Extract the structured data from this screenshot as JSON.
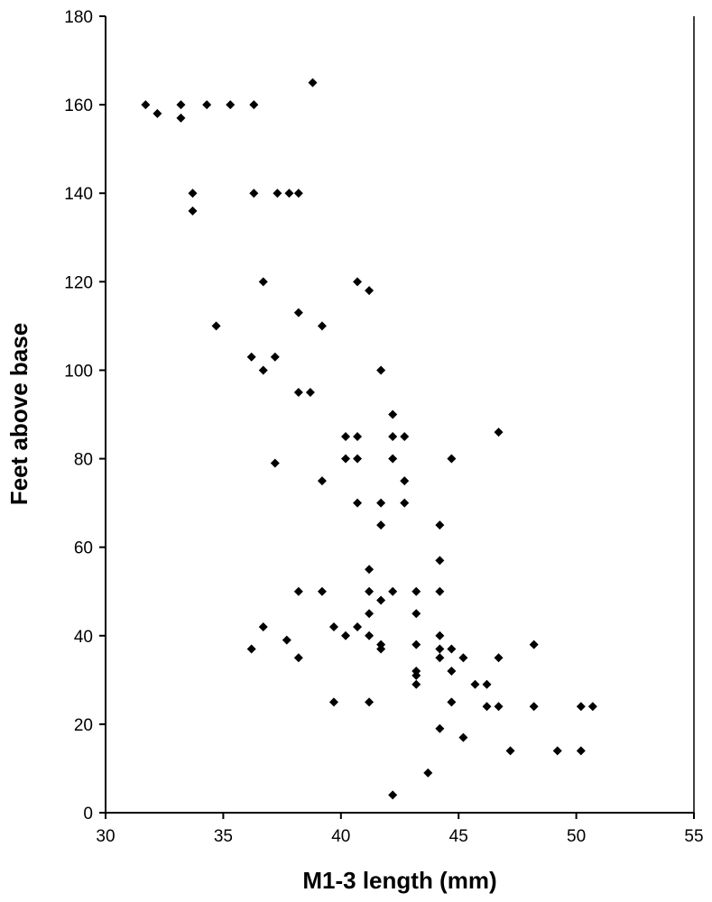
{
  "chart_data": {
    "type": "scatter",
    "title": "",
    "xlabel": "M1-3 length (mm)",
    "ylabel": "Feet above base",
    "xlim": [
      30,
      55
    ],
    "ylim": [
      0,
      180
    ],
    "xticks": [
      30,
      35,
      40,
      45,
      50,
      55
    ],
    "yticks": [
      0,
      20,
      40,
      60,
      80,
      100,
      120,
      140,
      160,
      180
    ],
    "grid": false,
    "legend": "none",
    "marker": "diamond",
    "marker_color": "#000000",
    "series": [
      {
        "points": [
          [
            31.7,
            160
          ],
          [
            32.2,
            158
          ],
          [
            33.2,
            160
          ],
          [
            33.2,
            157
          ],
          [
            34.3,
            160
          ],
          [
            35.3,
            160
          ],
          [
            36.3,
            160
          ],
          [
            38.8,
            165
          ],
          [
            33.7,
            140
          ],
          [
            33.7,
            136
          ],
          [
            36.3,
            140
          ],
          [
            37.3,
            140
          ],
          [
            37.8,
            140
          ],
          [
            38.2,
            140
          ],
          [
            36.7,
            120
          ],
          [
            40.7,
            120
          ],
          [
            41.2,
            118
          ],
          [
            34.7,
            110
          ],
          [
            38.2,
            113
          ],
          [
            39.2,
            110
          ],
          [
            36.2,
            103
          ],
          [
            36.7,
            100
          ],
          [
            37.2,
            103
          ],
          [
            41.7,
            100
          ],
          [
            38.2,
            95
          ],
          [
            38.7,
            95
          ],
          [
            42.2,
            90
          ],
          [
            40.2,
            85
          ],
          [
            40.7,
            85
          ],
          [
            42.2,
            85
          ],
          [
            42.7,
            85
          ],
          [
            46.7,
            86
          ],
          [
            40.2,
            80
          ],
          [
            40.7,
            80
          ],
          [
            42.2,
            80
          ],
          [
            44.7,
            80
          ],
          [
            37.2,
            79
          ],
          [
            39.2,
            75
          ],
          [
            42.7,
            75
          ],
          [
            40.7,
            70
          ],
          [
            41.7,
            70
          ],
          [
            42.7,
            70
          ],
          [
            41.7,
            65
          ],
          [
            44.2,
            65
          ],
          [
            44.2,
            57
          ],
          [
            41.2,
            55
          ],
          [
            38.2,
            50
          ],
          [
            39.2,
            50
          ],
          [
            41.2,
            50
          ],
          [
            42.2,
            50
          ],
          [
            43.2,
            50
          ],
          [
            44.2,
            50
          ],
          [
            41.7,
            48
          ],
          [
            36.7,
            42
          ],
          [
            39.7,
            42
          ],
          [
            40.7,
            42
          ],
          [
            41.2,
            45
          ],
          [
            43.2,
            45
          ],
          [
            37.7,
            39
          ],
          [
            40.2,
            40
          ],
          [
            41.2,
            40
          ],
          [
            44.2,
            40
          ],
          [
            36.2,
            37
          ],
          [
            41.7,
            37
          ],
          [
            41.7,
            38
          ],
          [
            43.2,
            38
          ],
          [
            44.2,
            37
          ],
          [
            44.7,
            37
          ],
          [
            48.2,
            38
          ],
          [
            38.2,
            35
          ],
          [
            44.2,
            35
          ],
          [
            45.2,
            35
          ],
          [
            46.7,
            35
          ],
          [
            43.2,
            32
          ],
          [
            43.2,
            31
          ],
          [
            44.7,
            32
          ],
          [
            43.2,
            29
          ],
          [
            45.7,
            29
          ],
          [
            46.2,
            29
          ],
          [
            39.7,
            25
          ],
          [
            41.2,
            25
          ],
          [
            44.7,
            25
          ],
          [
            46.2,
            24
          ],
          [
            46.7,
            24
          ],
          [
            48.2,
            24
          ],
          [
            50.2,
            24
          ],
          [
            50.7,
            24
          ],
          [
            44.2,
            19
          ],
          [
            45.2,
            17
          ],
          [
            47.2,
            14
          ],
          [
            49.2,
            14
          ],
          [
            50.2,
            14
          ],
          [
            43.7,
            9
          ],
          [
            42.2,
            4
          ]
        ]
      }
    ]
  }
}
